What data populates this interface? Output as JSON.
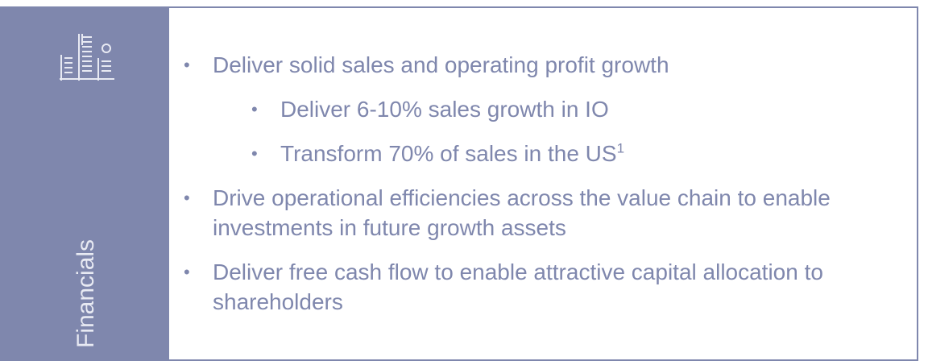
{
  "sidebar": {
    "label": "Financials"
  },
  "bullets": [
    {
      "level": 1,
      "text": "Deliver solid sales and operating profit growth"
    },
    {
      "level": 2,
      "text": "Deliver 6-10% sales growth in IO"
    },
    {
      "level": 2,
      "text": "Transform 70% of sales in the US",
      "superscript": "1"
    },
    {
      "level": 1,
      "text": "Drive operational efficiencies across the value chain to enable investments in future growth assets"
    },
    {
      "level": 1,
      "text": "Deliver free cash flow to enable attractive capital allocation to shareholders"
    }
  ]
}
